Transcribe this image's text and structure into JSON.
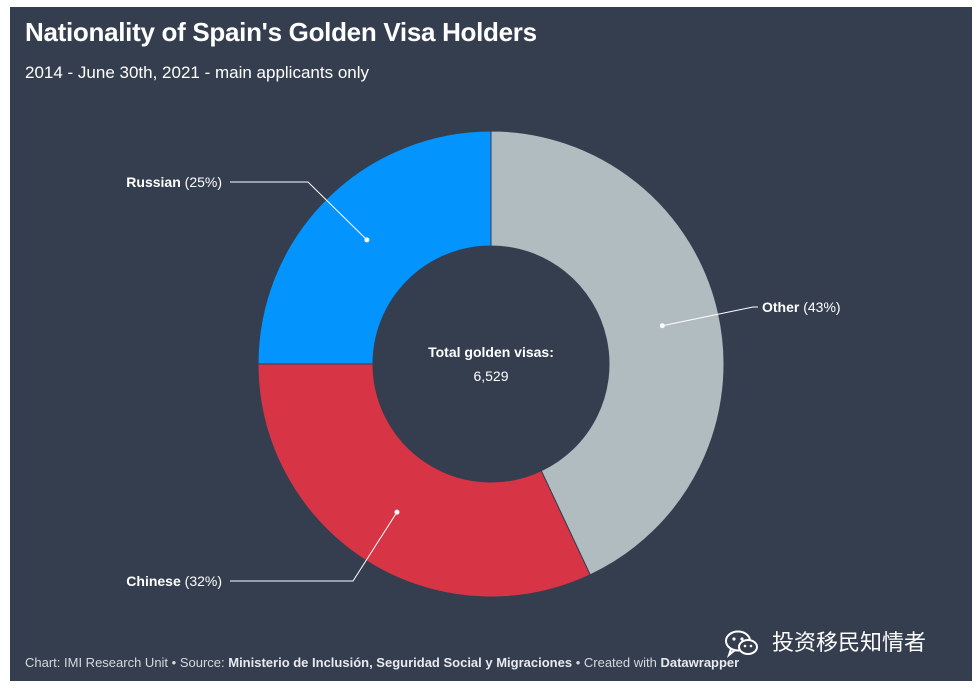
{
  "chart_data": {
    "type": "pie",
    "title": "Nationality of Spain's Golden Visa Holders",
    "subtitle": "2014 - June 30th, 2021 - main applicants only",
    "center_label": "Total golden visas:",
    "center_value": "6,529",
    "slices": [
      {
        "name": "Other",
        "pct_label": "(43%)",
        "value": 43,
        "color": "#b1bcc0"
      },
      {
        "name": "Chinese",
        "pct_label": "(32%)",
        "value": 32,
        "color": "#d73446"
      },
      {
        "name": "Russian",
        "pct_label": "(25%)",
        "value": 25,
        "color": "#0394fe"
      }
    ]
  },
  "footer": {
    "prefix": "Chart: IMI Research Unit • Source: ",
    "source": "Ministerio de Inclusión, Seguridad Social y Migraciones",
    "middle": " • Created with ",
    "tool": "Datawrapper"
  },
  "watermark": {
    "text": "投资移民知情者",
    "icon": "wechat-icon"
  }
}
